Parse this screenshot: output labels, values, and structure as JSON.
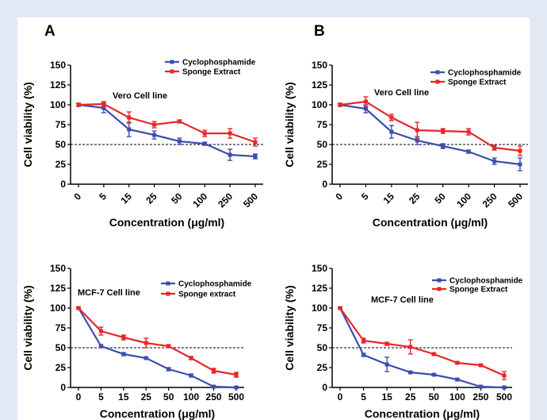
{
  "panel_letters": [
    "A",
    "B"
  ],
  "colors": {
    "cyclophosphamide": "#3b4fb0",
    "sponge": "#e8262a"
  },
  "chart_data": [
    {
      "type": "line",
      "panel": "A",
      "title": "Vero Cell line",
      "xlabel": "Concentration (μg/ml)",
      "ylabel": "Cell viability (%)",
      "categories": [
        "0",
        "5",
        "15",
        "25",
        "50",
        "100",
        "250",
        "500"
      ],
      "ylim": [
        0,
        150
      ],
      "yticks": [
        0,
        25,
        50,
        75,
        100,
        125,
        150
      ],
      "reference_line": 50,
      "x_tick_rotation": -45,
      "legend_placement": "top-right",
      "series": [
        {
          "name": "Cyclophosphamide",
          "color": "#3b4fb0",
          "values": [
            100,
            96,
            69,
            62,
            54,
            51,
            37,
            35
          ],
          "errors": [
            2,
            6,
            9,
            5,
            4,
            2,
            7,
            3
          ]
        },
        {
          "name": "Sponge Extract",
          "color": "#e8262a",
          "values": [
            100,
            101,
            84,
            75,
            79,
            64,
            64,
            53
          ],
          "errors": [
            2,
            3,
            7,
            4,
            2,
            4,
            6,
            5
          ]
        }
      ]
    },
    {
      "type": "line",
      "panel": "B",
      "title": "Vero Cell line",
      "xlabel": "Concentration (μg/ml)",
      "ylabel": "Cell viability (%)",
      "categories": [
        "0",
        "5",
        "15",
        "25",
        "50",
        "100",
        "250",
        "500"
      ],
      "ylim": [
        0,
        150
      ],
      "yticks": [
        0,
        25,
        50,
        75,
        100,
        125,
        150
      ],
      "reference_line": 50,
      "x_tick_rotation": -45,
      "legend_placement": "top-right",
      "series": [
        {
          "name": "Cyclophosphamide",
          "color": "#3b4fb0",
          "values": [
            100,
            95,
            66,
            55,
            48,
            41,
            29,
            25
          ],
          "errors": [
            2,
            5,
            8,
            5,
            3,
            2,
            4,
            8
          ]
        },
        {
          "name": "Sponge Extract",
          "color": "#e8262a",
          "values": [
            100,
            104,
            84,
            68,
            67,
            66,
            46,
            42
          ],
          "errors": [
            2,
            6,
            4,
            10,
            3,
            4,
            3,
            6
          ]
        }
      ]
    },
    {
      "type": "line",
      "panel": "A-bottom",
      "title": "MCF-7 Cell line",
      "xlabel": "Concentration (μg/ml)",
      "ylabel": "Cell viability (%)",
      "categories": [
        "0",
        "5",
        "15",
        "25",
        "50",
        "100",
        "250",
        "500"
      ],
      "ylim": [
        0,
        150
      ],
      "yticks": [
        0,
        25,
        50,
        75,
        100,
        125,
        150
      ],
      "reference_line": 50,
      "x_tick_rotation": 0,
      "legend_placement": "top-right",
      "series": [
        {
          "name": "Cyclophosphamide",
          "color": "#3b4fb0",
          "values": [
            100,
            52,
            42,
            37,
            23,
            15,
            1,
            0
          ],
          "errors": [
            1,
            2,
            2,
            1,
            2,
            2,
            1,
            1
          ]
        },
        {
          "name": "Sponge extract",
          "color": "#e8262a",
          "values": [
            100,
            71,
            63,
            56,
            52,
            37,
            21,
            16
          ],
          "errors": [
            1,
            5,
            3,
            6,
            2,
            2,
            3,
            3
          ]
        }
      ]
    },
    {
      "type": "line",
      "panel": "B-bottom",
      "title": "MCF-7 Cell line",
      "xlabel": "Concentration (μg/ml)",
      "ylabel": "Cell viability (%)",
      "categories": [
        "0",
        "5",
        "15",
        "25",
        "50",
        "100",
        "250",
        "500"
      ],
      "ylim": [
        0,
        150
      ],
      "yticks": [
        0,
        25,
        50,
        75,
        100,
        125,
        150
      ],
      "reference_line": 50,
      "x_tick_rotation": 0,
      "legend_placement": "top-right",
      "series": [
        {
          "name": "Cyclophosphamide",
          "color": "#3b4fb0",
          "values": [
            100,
            41,
            29,
            19,
            16,
            10,
            1,
            0
          ],
          "errors": [
            1,
            2,
            9,
            1,
            1,
            1,
            1,
            1
          ]
        },
        {
          "name": "Sponge Extract",
          "color": "#e8262a",
          "values": [
            100,
            59,
            55,
            51,
            42,
            31,
            28,
            15
          ],
          "errors": [
            1,
            3,
            2,
            9,
            1,
            1,
            1,
            5
          ]
        }
      ]
    }
  ]
}
